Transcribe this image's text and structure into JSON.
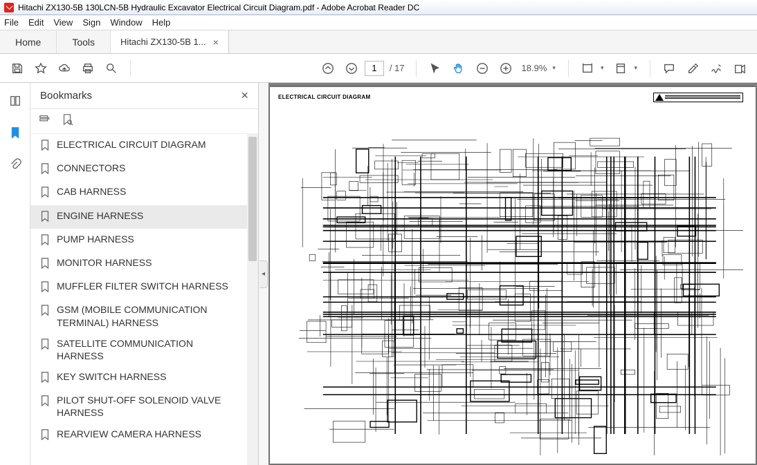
{
  "window": {
    "title": "Hitachi ZX130-5B 130LCN-5B Hydraulic Excavator Electrical Circuit Diagram.pdf - Adobe Acrobat Reader DC"
  },
  "menu": {
    "items": [
      "File",
      "Edit",
      "View",
      "Sign",
      "Window",
      "Help"
    ]
  },
  "tabs": {
    "home": "Home",
    "tools": "Tools",
    "doc": "Hitachi ZX130-5B 1...",
    "close_glyph": "×"
  },
  "toolbar": {
    "page_current": "1",
    "page_total": "/ 17",
    "zoom_value": "18.9%",
    "caret": "▾"
  },
  "bookmarks": {
    "title": "Bookmarks",
    "close_glyph": "×",
    "selected_index": 3,
    "items": [
      {
        "label": "ELECTRICAL CIRCUIT DIAGRAM"
      },
      {
        "label": "CONNECTORS"
      },
      {
        "label": "CAB HARNESS"
      },
      {
        "label": "ENGINE HARNESS"
      },
      {
        "label": "PUMP HARNESS"
      },
      {
        "label": "MONITOR HARNESS"
      },
      {
        "label": "MUFFLER FILTER SWITCH HARNESS"
      },
      {
        "label": "GSM (MOBILE COMMUNICATION TERMINAL) HARNESS"
      },
      {
        "label": "SATELLITE COMMUNICATION HARNESS"
      },
      {
        "label": "KEY SWITCH HARNESS"
      },
      {
        "label": "PILOT SHUT-OFF SOLENOID VALVE HARNESS"
      },
      {
        "label": "REARVIEW CAMERA HARNESS"
      }
    ]
  },
  "collapse": {
    "glyph": "◂"
  },
  "page_content": {
    "title": "ELECTRICAL CIRCUIT DIAGRAM"
  },
  "colors": {
    "accent": "#1f8fe6",
    "titlebar_border": "#a5b6cc",
    "doc_bg": "#808080",
    "gray_bar": "#9a9a9a",
    "selection_bg": "#eaeaea"
  }
}
